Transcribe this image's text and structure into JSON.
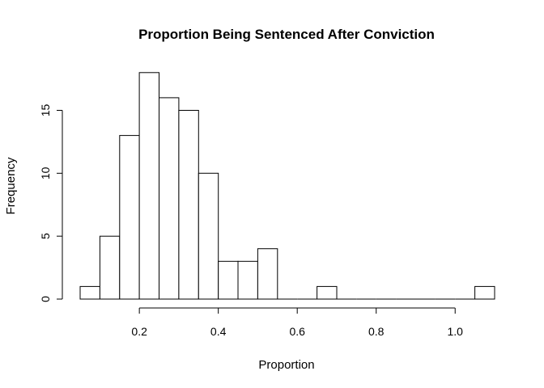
{
  "chart_data": {
    "type": "bar",
    "subtype": "histogram",
    "title": "Proportion Being Sentenced After Conviction",
    "xlabel": "Proportion",
    "ylabel": "Frequency",
    "bin_width": 0.05,
    "bins": [
      {
        "from": 0.05,
        "to": 0.1,
        "count": 1
      },
      {
        "from": 0.1,
        "to": 0.15,
        "count": 5
      },
      {
        "from": 0.15,
        "to": 0.2,
        "count": 13
      },
      {
        "from": 0.2,
        "to": 0.25,
        "count": 18
      },
      {
        "from": 0.25,
        "to": 0.3,
        "count": 16
      },
      {
        "from": 0.3,
        "to": 0.35,
        "count": 15
      },
      {
        "from": 0.35,
        "to": 0.4,
        "count": 10
      },
      {
        "from": 0.4,
        "to": 0.45,
        "count": 3
      },
      {
        "from": 0.45,
        "to": 0.5,
        "count": 3
      },
      {
        "from": 0.5,
        "to": 0.55,
        "count": 4
      },
      {
        "from": 0.55,
        "to": 0.6,
        "count": 0
      },
      {
        "from": 0.6,
        "to": 0.65,
        "count": 0
      },
      {
        "from": 0.65,
        "to": 0.7,
        "count": 1
      },
      {
        "from": 0.7,
        "to": 0.75,
        "count": 0
      },
      {
        "from": 0.75,
        "to": 0.8,
        "count": 0
      },
      {
        "from": 0.8,
        "to": 0.85,
        "count": 0
      },
      {
        "from": 0.85,
        "to": 0.9,
        "count": 0
      },
      {
        "from": 0.9,
        "to": 0.95,
        "count": 0
      },
      {
        "from": 0.95,
        "to": 1.0,
        "count": 0
      },
      {
        "from": 1.0,
        "to": 1.05,
        "count": 0
      },
      {
        "from": 1.05,
        "to": 1.1,
        "count": 1
      }
    ],
    "x_ticks": [
      0.2,
      0.4,
      0.6,
      0.8,
      1.0
    ],
    "x_tick_labels": [
      "0.2",
      "0.4",
      "0.6",
      "0.8",
      "1.0"
    ],
    "y_ticks": [
      0,
      5,
      10,
      15
    ],
    "y_tick_labels": [
      "0",
      "5",
      "10",
      "15"
    ],
    "xlim": [
      0.05,
      1.1
    ],
    "ylim": [
      0,
      18
    ],
    "grid": false,
    "legend": "none",
    "bar_fill": "#ffffff",
    "bar_stroke": "#000000"
  }
}
